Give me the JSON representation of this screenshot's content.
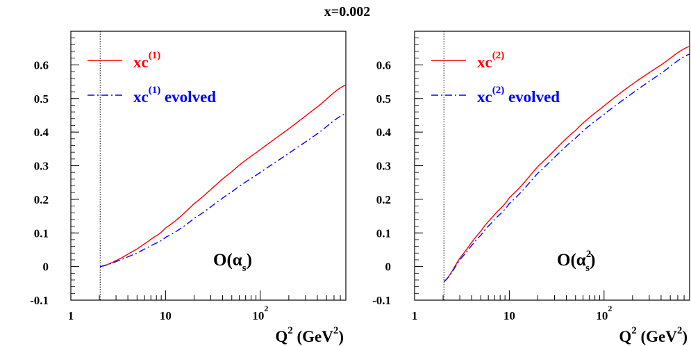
{
  "figure_title": "x=0.002",
  "x_axis_label": {
    "main": "Q",
    "sup": "2",
    "unit_open": " (GeV",
    "unit_sup": "2",
    "unit_close": ")"
  },
  "colors": {
    "lo": "#ff0000",
    "evolved": "#0000ff",
    "threshold": "#000000"
  },
  "chart_data": [
    {
      "type": "line",
      "panel": "left",
      "xscale": "log",
      "xlim": [
        1,
        800
      ],
      "ylim": [
        -0.1,
        0.7
      ],
      "threshold_x": 2.04,
      "x_ticks": [
        {
          "value": 1,
          "label": "1"
        },
        {
          "value": 10,
          "label": "10"
        },
        {
          "value": 100,
          "label": "10",
          "sup": "2"
        }
      ],
      "y_ticks": [
        -0.1,
        0,
        0.1,
        0.2,
        0.3,
        0.4,
        0.5,
        0.6
      ],
      "y_tick_labels": [
        "-0.1",
        "0",
        "0.1",
        "0.2",
        "0.3",
        "0.4",
        "0.5",
        "0.6"
      ],
      "annotation": {
        "text": "O(α",
        "sub": "s",
        "sup": "",
        "close": ")"
      },
      "legend_position": "top-left",
      "series": [
        {
          "legend_main": "xc",
          "legend_sup": "(1)",
          "legend_suffix": "",
          "style": "solid",
          "color": "#ff0000",
          "x": [
            2.04,
            3,
            5,
            7,
            10,
            20,
            50,
            100,
            200,
            400,
            800
          ],
          "y": [
            0.0,
            0.018,
            0.052,
            0.081,
            0.115,
            0.187,
            0.282,
            0.348,
            0.41,
            0.475,
            0.54
          ]
        },
        {
          "legend_main": "xc",
          "legend_sup": "(1)",
          "legend_suffix": " evolved",
          "style": "dashdot",
          "color": "#0000ff",
          "x": [
            2.04,
            3,
            5,
            7,
            10,
            20,
            50,
            100,
            200,
            400,
            800
          ],
          "y": [
            0.0,
            0.015,
            0.04,
            0.062,
            0.087,
            0.143,
            0.222,
            0.28,
            0.337,
            0.395,
            0.455
          ]
        }
      ]
    },
    {
      "type": "line",
      "panel": "right",
      "xscale": "log",
      "xlim": [
        1,
        800
      ],
      "ylim": [
        -0.1,
        0.7
      ],
      "threshold_x": 2.04,
      "x_ticks": [
        {
          "value": 1,
          "label": "1"
        },
        {
          "value": 10,
          "label": "10"
        },
        {
          "value": 100,
          "label": "10",
          "sup": "2"
        }
      ],
      "y_ticks": [
        -0.1,
        0,
        0.1,
        0.2,
        0.3,
        0.4,
        0.5,
        0.6
      ],
      "y_tick_labels": [
        "-0.1",
        "0",
        "0.1",
        "0.2",
        "0.3",
        "0.4",
        "0.5",
        "0.6"
      ],
      "annotation": {
        "text": "O(α",
        "sub": "s",
        "sup": "2",
        "close": ")"
      },
      "legend_position": "top-left",
      "series": [
        {
          "legend_main": "xc",
          "legend_sup": "(2)",
          "legend_suffix": "",
          "style": "solid",
          "color": "#ff0000",
          "x": [
            2.04,
            3,
            5,
            7,
            10,
            20,
            50,
            100,
            200,
            400,
            800
          ],
          "y": [
            -0.045,
            0.025,
            0.105,
            0.155,
            0.205,
            0.298,
            0.405,
            0.478,
            0.543,
            0.6,
            0.655
          ]
        },
        {
          "legend_main": "xc",
          "legend_sup": "(2)",
          "legend_suffix": " evolved",
          "style": "dashdot",
          "color": "#0000ff",
          "x": [
            2.04,
            3,
            5,
            7,
            10,
            20,
            50,
            100,
            200,
            400,
            800
          ],
          "y": [
            -0.045,
            0.02,
            0.093,
            0.14,
            0.188,
            0.278,
            0.382,
            0.453,
            0.516,
            0.575,
            0.632
          ]
        }
      ]
    }
  ]
}
